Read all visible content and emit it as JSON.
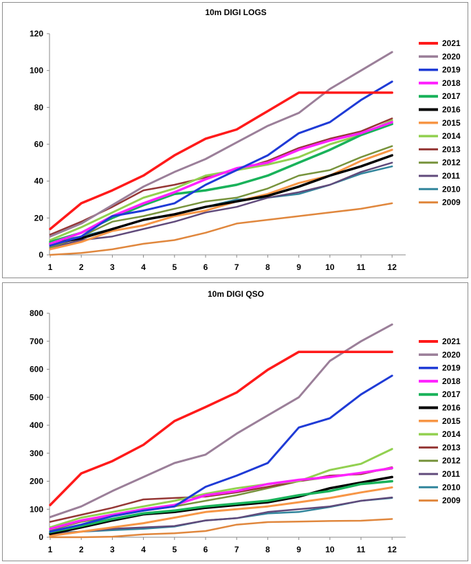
{
  "chart_data": [
    {
      "type": "line",
      "title": "10m DIGI LOGS",
      "xlabel": "",
      "ylabel": "",
      "x": [
        1,
        2,
        3,
        4,
        5,
        6,
        7,
        8,
        9,
        10,
        11,
        12
      ],
      "ylim": [
        0,
        120
      ],
      "yticks": [
        0,
        20,
        40,
        60,
        80,
        100,
        120
      ],
      "grid": false,
      "legend": "right",
      "series": [
        {
          "name": "2021",
          "color": "#ff1a1a",
          "width": 3.5,
          "values": [
            14,
            28,
            35,
            43,
            54,
            63,
            68,
            78,
            88,
            88,
            88,
            88
          ]
        },
        {
          "name": "2020",
          "color": "#9b7f99",
          "width": 3,
          "values": [
            10,
            17,
            27,
            37,
            45,
            52,
            61,
            70,
            77,
            90,
            100,
            110
          ]
        },
        {
          "name": "2019",
          "color": "#1f3bd6",
          "width": 3,
          "values": [
            5,
            10,
            21,
            24,
            28,
            38,
            46,
            54,
            66,
            72,
            84,
            94
          ]
        },
        {
          "name": "2018",
          "color": "#ff22ff",
          "width": 3.5,
          "values": [
            6,
            12,
            21,
            28,
            34,
            41,
            47,
            50,
            57,
            62,
            66,
            72
          ]
        },
        {
          "name": "2017",
          "color": "#19b25a",
          "width": 3.5,
          "values": [
            7,
            12,
            20,
            27,
            33,
            35,
            38,
            43,
            50,
            57,
            65,
            71
          ]
        },
        {
          "name": "2016",
          "color": "#000000",
          "width": 3.5,
          "values": [
            6,
            9,
            14,
            19,
            22,
            26,
            29,
            32,
            37,
            43,
            48,
            54
          ]
        },
        {
          "name": "2015",
          "color": "#f79646",
          "width": 3,
          "values": [
            3,
            7,
            13,
            16,
            21,
            24,
            29,
            33,
            39,
            43,
            51,
            57
          ]
        },
        {
          "name": "2014",
          "color": "#92d050",
          "width": 3,
          "values": [
            8,
            15,
            23,
            31,
            36,
            43,
            46,
            49,
            53,
            60,
            65,
            73
          ]
        },
        {
          "name": "2013",
          "color": "#953735",
          "width": 2.5,
          "values": [
            11,
            18,
            26,
            35,
            38,
            42,
            46,
            51,
            58,
            63,
            67,
            74
          ]
        },
        {
          "name": "2012",
          "color": "#77933c",
          "width": 2.5,
          "values": [
            4,
            10,
            18,
            21,
            25,
            29,
            31,
            36,
            43,
            46,
            53,
            59
          ]
        },
        {
          "name": "2011",
          "color": "#604a7b",
          "width": 2.5,
          "values": [
            4,
            8,
            10,
            14,
            18,
            23,
            26,
            31,
            34,
            38,
            45,
            50
          ]
        },
        {
          "name": "2010",
          "color": "#31859c",
          "width": 2.5,
          "values": [
            7,
            10,
            14,
            19,
            22,
            26,
            30,
            31,
            33,
            38,
            44,
            48
          ]
        },
        {
          "name": "2009",
          "color": "#e0873d",
          "width": 2.5,
          "values": [
            0,
            1,
            3,
            6,
            8,
            12,
            17,
            19,
            21,
            23,
            25,
            28
          ]
        }
      ]
    },
    {
      "type": "line",
      "title": "10m DIGI QSO",
      "xlabel": "",
      "ylabel": "",
      "x": [
        1,
        2,
        3,
        4,
        5,
        6,
        7,
        8,
        9,
        10,
        11,
        12
      ],
      "ylim": [
        0,
        800
      ],
      "yticks": [
        0,
        100,
        200,
        300,
        400,
        500,
        600,
        700,
        800
      ],
      "grid": false,
      "legend": "right",
      "series": [
        {
          "name": "2021",
          "color": "#ff1a1a",
          "width": 3.5,
          "values": [
            115,
            228,
            272,
            330,
            415,
            465,
            517,
            598,
            662,
            662,
            662,
            662
          ]
        },
        {
          "name": "2020",
          "color": "#9b7f99",
          "width": 3,
          "values": [
            72,
            110,
            165,
            215,
            265,
            295,
            370,
            435,
            500,
            630,
            700,
            760
          ]
        },
        {
          "name": "2019",
          "color": "#1f3bd6",
          "width": 3,
          "values": [
            20,
            45,
            75,
            95,
            110,
            180,
            220,
            265,
            392,
            425,
            510,
            577
          ]
        },
        {
          "name": "2018",
          "color": "#ff22ff",
          "width": 3.5,
          "values": [
            30,
            60,
            80,
            100,
            115,
            150,
            165,
            190,
            205,
            215,
            230,
            247
          ]
        },
        {
          "name": "2017",
          "color": "#19b25a",
          "width": 3.5,
          "values": [
            18,
            40,
            65,
            85,
            95,
            110,
            120,
            130,
            150,
            165,
            190,
            200
          ]
        },
        {
          "name": "2016",
          "color": "#000000",
          "width": 3.5,
          "values": [
            12,
            35,
            60,
            82,
            90,
            105,
            115,
            125,
            145,
            175,
            195,
            215
          ]
        },
        {
          "name": "2015",
          "color": "#f79646",
          "width": 3,
          "values": [
            5,
            20,
            35,
            50,
            70,
            90,
            100,
            110,
            125,
            140,
            160,
            178
          ]
        },
        {
          "name": "2014",
          "color": "#92d050",
          "width": 3,
          "values": [
            35,
            70,
            90,
            110,
            130,
            155,
            175,
            190,
            200,
            240,
            262,
            315
          ]
        },
        {
          "name": "2013",
          "color": "#953735",
          "width": 2.5,
          "values": [
            55,
            80,
            105,
            135,
            140,
            145,
            160,
            180,
            200,
            220,
            225,
            250
          ]
        },
        {
          "name": "2012",
          "color": "#77933c",
          "width": 2.5,
          "values": [
            25,
            55,
            75,
            95,
            110,
            130,
            150,
            175,
            200,
            215,
            230,
            245
          ]
        },
        {
          "name": "2011",
          "color": "#604a7b",
          "width": 2.5,
          "values": [
            10,
            20,
            30,
            35,
            40,
            60,
            68,
            90,
            100,
            110,
            130,
            142
          ]
        },
        {
          "name": "2010",
          "color": "#31859c",
          "width": 2.5,
          "values": [
            15,
            20,
            25,
            30,
            38,
            60,
            68,
            85,
            90,
            108,
            130,
            140
          ]
        },
        {
          "name": "2009",
          "color": "#e0873d",
          "width": 2.5,
          "values": [
            0,
            0,
            2,
            10,
            14,
            22,
            45,
            54,
            56,
            58,
            59,
            65
          ]
        }
      ]
    }
  ]
}
